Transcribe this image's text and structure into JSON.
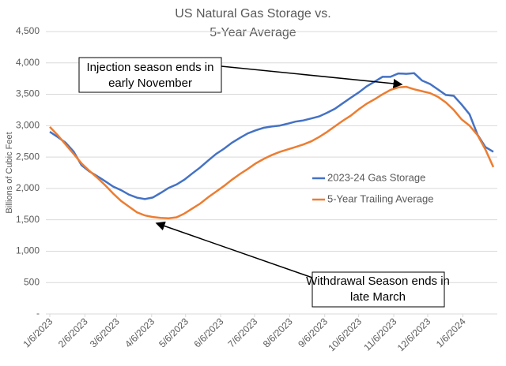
{
  "chart_data": {
    "type": "line",
    "title": [
      "US Natural Gas Storage vs.",
      "5-Year Average"
    ],
    "y_label": "Billions of Cubic Feet",
    "x": [
      "1/6/2023",
      "1/13/2023",
      "1/20/2023",
      "1/27/2023",
      "2/3/2023",
      "2/10/2023",
      "2/17/2023",
      "2/24/2023",
      "3/3/2023",
      "3/10/2023",
      "3/17/2023",
      "3/24/2023",
      "3/31/2023",
      "4/7/2023",
      "4/14/2023",
      "4/21/2023",
      "4/28/2023",
      "5/5/2023",
      "5/12/2023",
      "5/19/2023",
      "5/26/2023",
      "6/2/2023",
      "6/9/2023",
      "6/16/2023",
      "6/23/2023",
      "6/30/2023",
      "7/7/2023",
      "7/14/2023",
      "7/21/2023",
      "7/28/2023",
      "8/4/2023",
      "8/11/2023",
      "8/18/2023",
      "8/25/2023",
      "9/1/2023",
      "9/8/2023",
      "9/15/2023",
      "9/22/2023",
      "9/29/2023",
      "10/6/2023",
      "10/13/2023",
      "10/20/2023",
      "10/27/2023",
      "11/3/2023",
      "11/10/2023",
      "11/17/2023",
      "11/24/2023",
      "12/1/2023",
      "12/8/2023",
      "12/15/2023",
      "12/22/2023",
      "12/29/2023",
      "1/5/2024",
      "1/12/2024",
      "1/19/2024",
      "1/26/2024",
      "2/2/2024"
    ],
    "series": [
      {
        "name": "2023-24 Gas Storage",
        "color": "#4472c4",
        "values": [
          2902,
          2820,
          2729,
          2588,
          2371,
          2271,
          2195,
          2114,
          2030,
          1972,
          1900,
          1853,
          1830,
          1855,
          1930,
          2009,
          2063,
          2141,
          2240,
          2336,
          2446,
          2550,
          2634,
          2729,
          2805,
          2877,
          2926,
          2967,
          2987,
          3001,
          3030,
          3065,
          3083,
          3115,
          3148,
          3205,
          3269,
          3359,
          3445,
          3529,
          3626,
          3700,
          3779,
          3779,
          3833,
          3826,
          3836,
          3719,
          3664,
          3577,
          3490,
          3476,
          3336,
          3182,
          2856,
          2659,
          2584
        ]
      },
      {
        "name": "5-Year Trailing Average",
        "color": "#ed7d31",
        "values": [
          2980,
          2850,
          2700,
          2550,
          2400,
          2280,
          2170,
          2050,
          1920,
          1800,
          1710,
          1620,
          1570,
          1545,
          1530,
          1525,
          1540,
          1600,
          1680,
          1760,
          1860,
          1950,
          2040,
          2140,
          2230,
          2310,
          2400,
          2470,
          2530,
          2580,
          2620,
          2660,
          2700,
          2750,
          2820,
          2900,
          2990,
          3080,
          3160,
          3260,
          3350,
          3420,
          3500,
          3570,
          3610,
          3620,
          3580,
          3550,
          3520,
          3460,
          3370,
          3250,
          3100,
          3000,
          2850,
          2620,
          2340
        ]
      }
    ],
    "xlim": [
      "1/6/2023",
      "2/2/2024"
    ],
    "xticks": [
      "1/6/2023",
      "2/6/2023",
      "3/6/2023",
      "4/6/2023",
      "5/6/2023",
      "6/6/2023",
      "7/6/2023",
      "8/6/2023",
      "9/6/2023",
      "10/6/2023",
      "11/6/2023",
      "12/6/2023",
      "1/6/2024"
    ],
    "ylim": [
      0,
      4500
    ],
    "yticks": [
      {
        "value": 0,
        "label": "-"
      },
      {
        "value": 500,
        "label": "500"
      },
      {
        "value": 1000,
        "label": "1,000"
      },
      {
        "value": 1500,
        "label": "1,500"
      },
      {
        "value": 2000,
        "label": "2,000"
      },
      {
        "value": 2500,
        "label": "2,500"
      },
      {
        "value": 3000,
        "label": "3,000"
      },
      {
        "value": 3500,
        "label": "3,500"
      },
      {
        "value": 4000,
        "label": "4,000"
      },
      {
        "value": 4500,
        "label": "4,500"
      }
    ],
    "grid": true,
    "legend": "center-right",
    "annotations": [
      {
        "lines": [
          "Injection season ends in",
          "early November"
        ]
      },
      {
        "lines": [
          "Withdrawal Season ends in",
          "late March"
        ]
      }
    ]
  }
}
